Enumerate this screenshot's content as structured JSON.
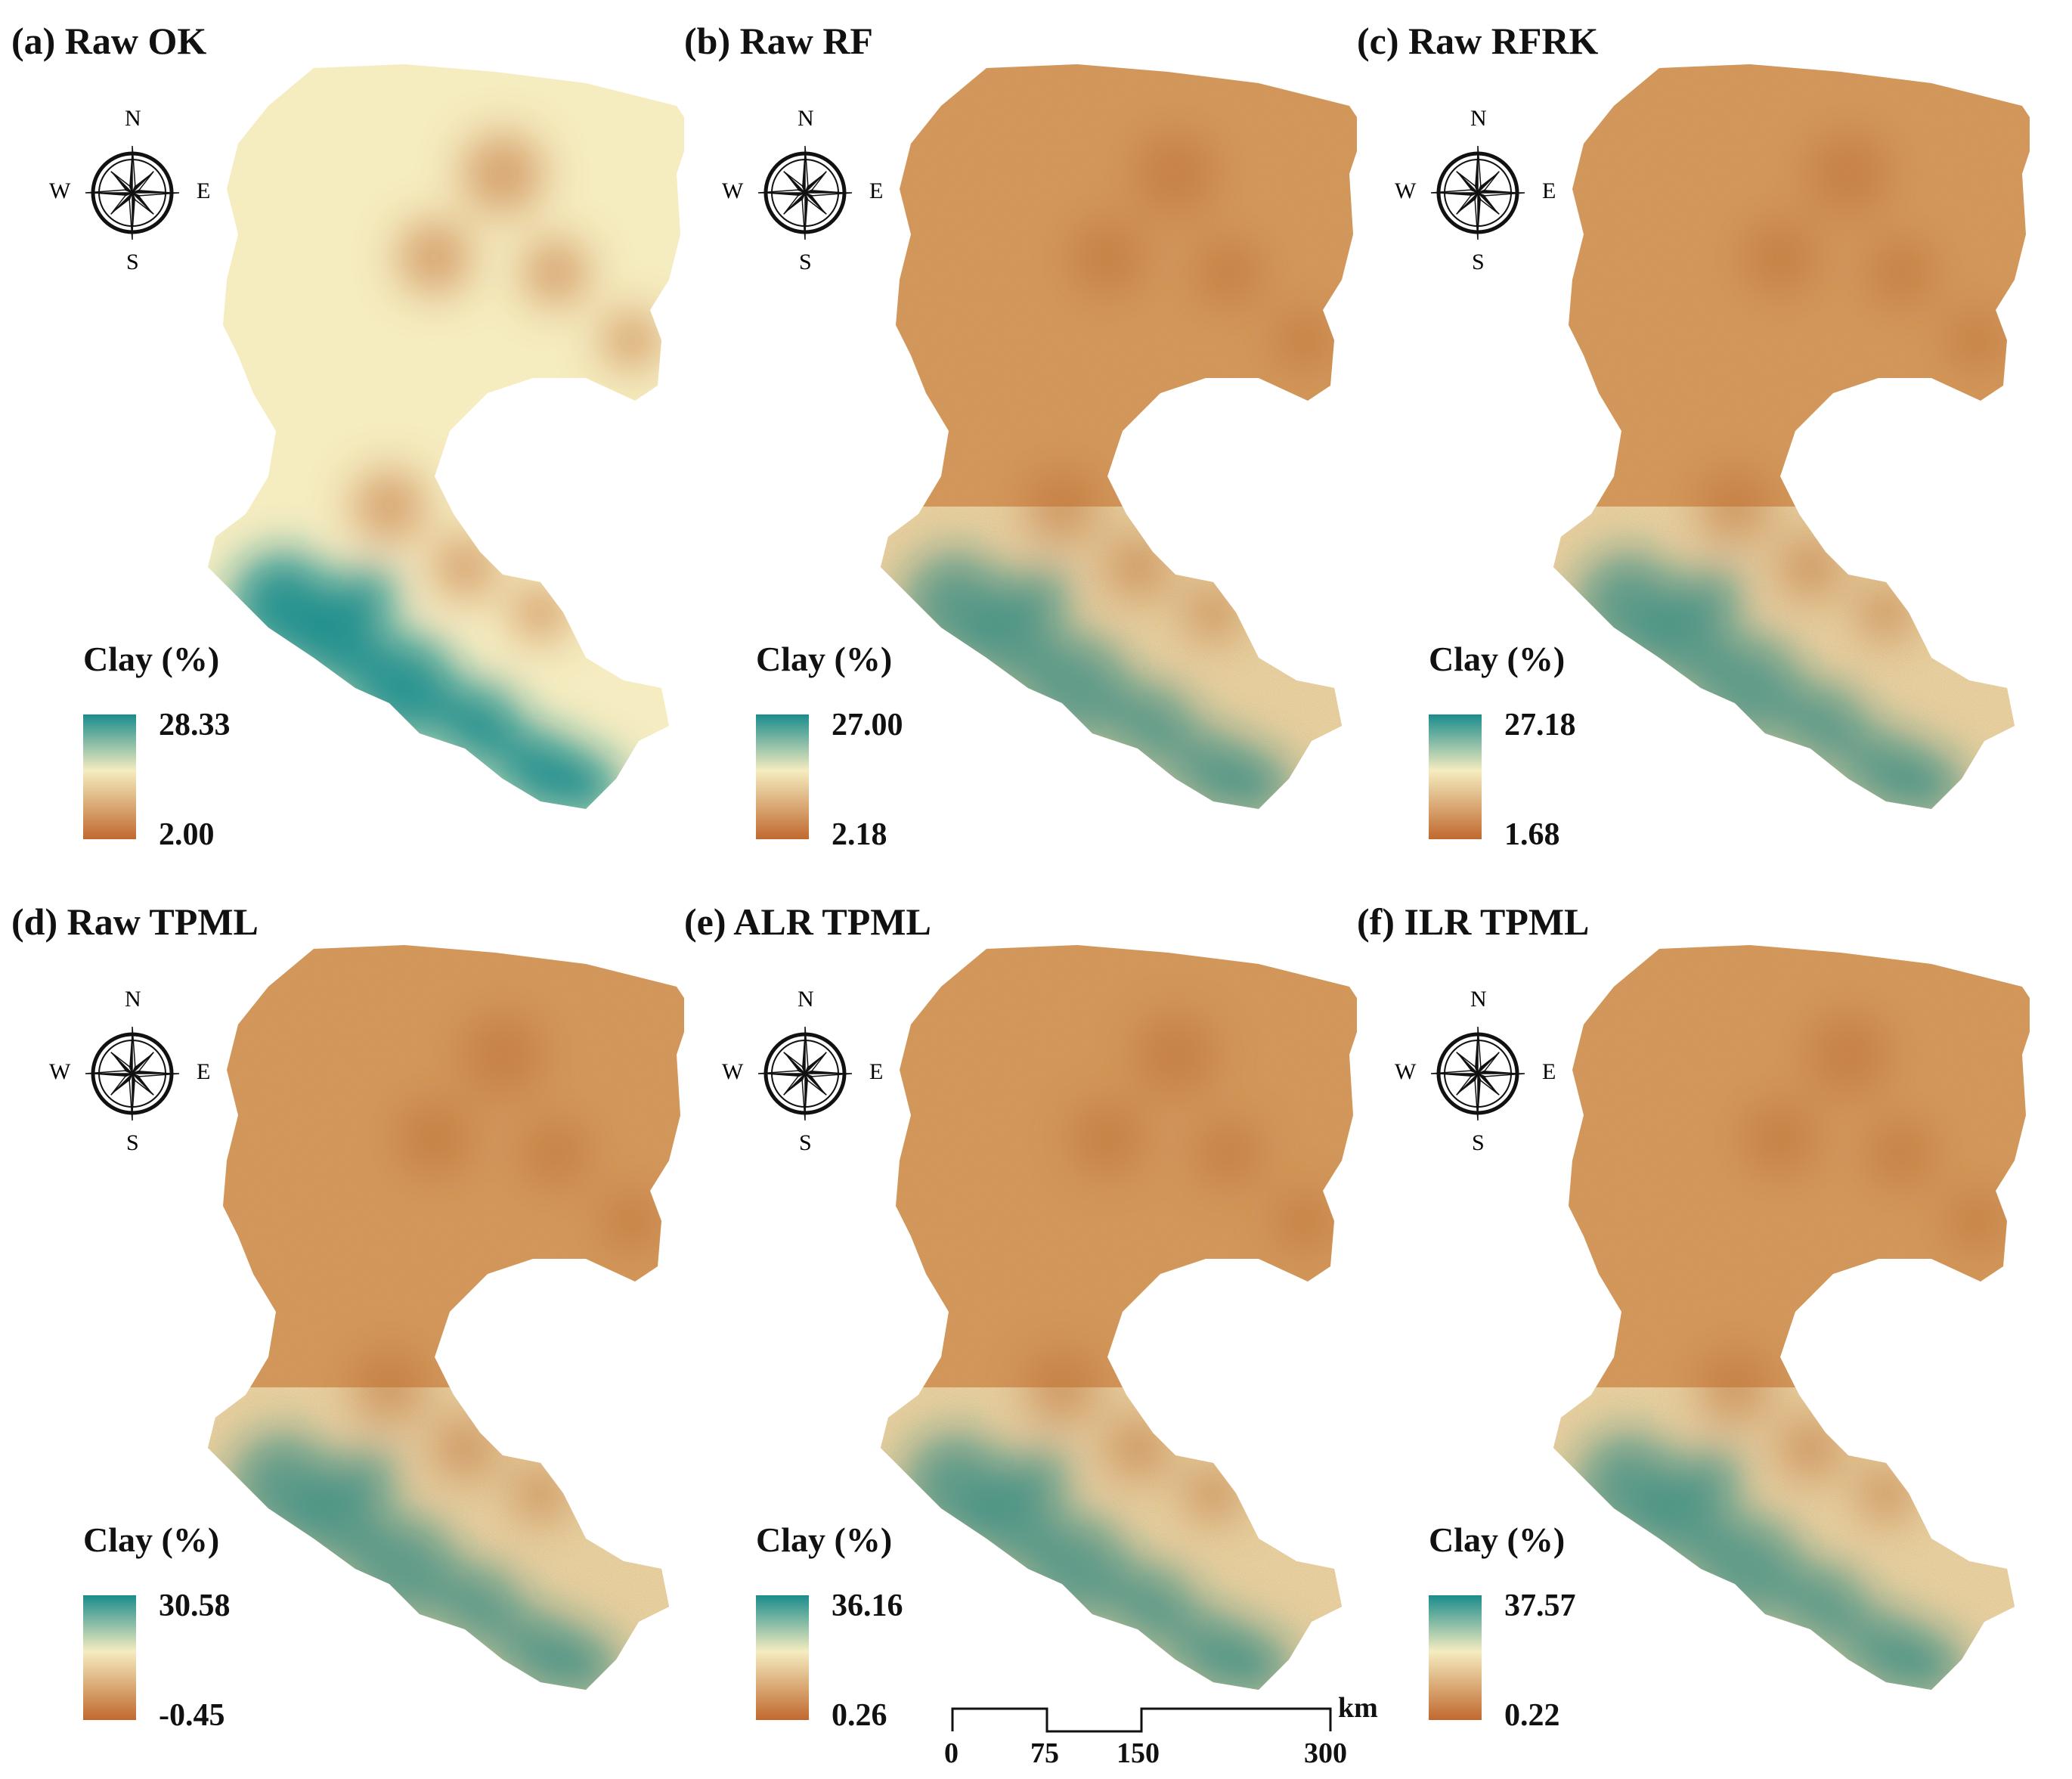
{
  "colors": {
    "high": "#1a8c8c",
    "mid": "#f5ecc0",
    "low": "#c0692e",
    "base": "#d99a5b"
  },
  "compass": {
    "n": "N",
    "s": "S",
    "e": "E",
    "w": "W",
    "icon": "compass-rose-icon"
  },
  "legend_title": "Clay (%)",
  "panels": [
    {
      "title": "(a) Raw OK",
      "max": "28.33",
      "min": "2.00"
    },
    {
      "title": "(b) Raw RF",
      "max": "27.00",
      "min": "2.18"
    },
    {
      "title": "(c) Raw RFRK",
      "max": "27.18",
      "min": "1.68"
    },
    {
      "title": "(d) Raw TPML",
      "max": "30.58",
      "min": "-0.45"
    },
    {
      "title": "(e) ALR TPML",
      "max": "36.16",
      "min": "0.26"
    },
    {
      "title": "(f) ILR TPML",
      "max": "37.57",
      "min": "0.22"
    }
  ],
  "scalebar": {
    "ticks": [
      "0",
      "75",
      "150",
      "300"
    ],
    "unit": "km"
  }
}
